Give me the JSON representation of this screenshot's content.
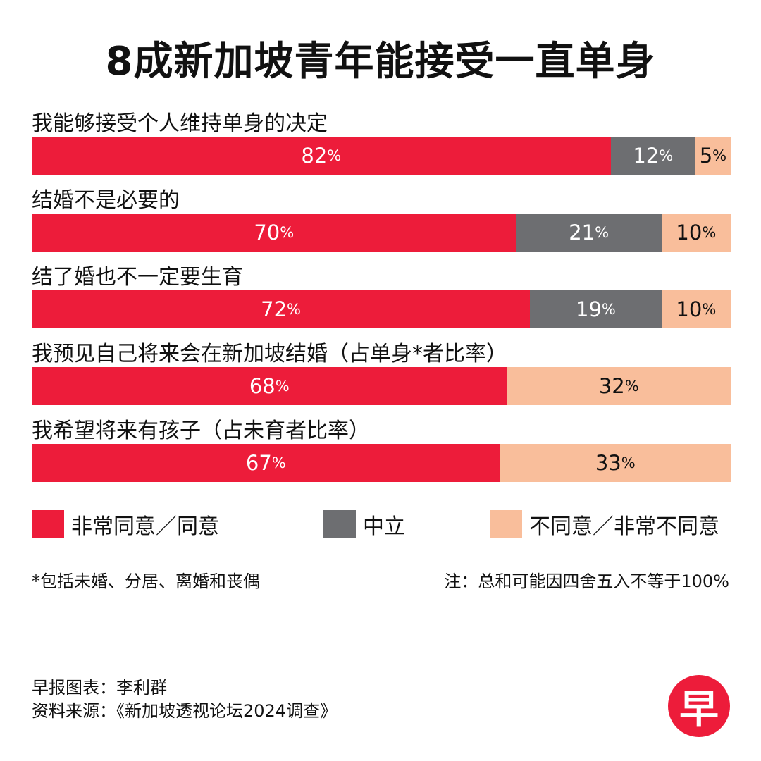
{
  "title": "8成新加坡青年能接受一直单身",
  "colors": {
    "agree": "#ed1c3a",
    "neutral": "#6d6e71",
    "disagree": "#f9be9b"
  },
  "chart_data": {
    "type": "bar",
    "orientation": "horizontal",
    "stacked": true,
    "unit": "%",
    "categories": [
      "我能够接受个人维持单身的决定",
      "结婚不是必要的",
      "结了婚也不一定要生育",
      "我预见自己将来会在新加坡结婚（占单身*者比率）",
      "我希望将来有孩子（占未育者比率）"
    ],
    "series": [
      {
        "name": "非常同意／同意",
        "color": "#ed1c3a",
        "values": [
          82,
          70,
          72,
          68,
          67
        ]
      },
      {
        "name": "中立",
        "color": "#6d6e71",
        "values": [
          12,
          21,
          19,
          null,
          null
        ]
      },
      {
        "name": "不同意／非常不同意",
        "color": "#f9be9b",
        "values": [
          5,
          10,
          10,
          32,
          33
        ]
      }
    ],
    "legend": "bottom"
  },
  "footnote": "*包括未婚、分居、离婚和丧偶",
  "note": "注：总和可能因四舍五入不等于100%",
  "credits": {
    "author": "早报图表：李利群",
    "source": "资料来源：《新加坡透视论坛2024调查》"
  },
  "logo": {
    "char": "早"
  }
}
